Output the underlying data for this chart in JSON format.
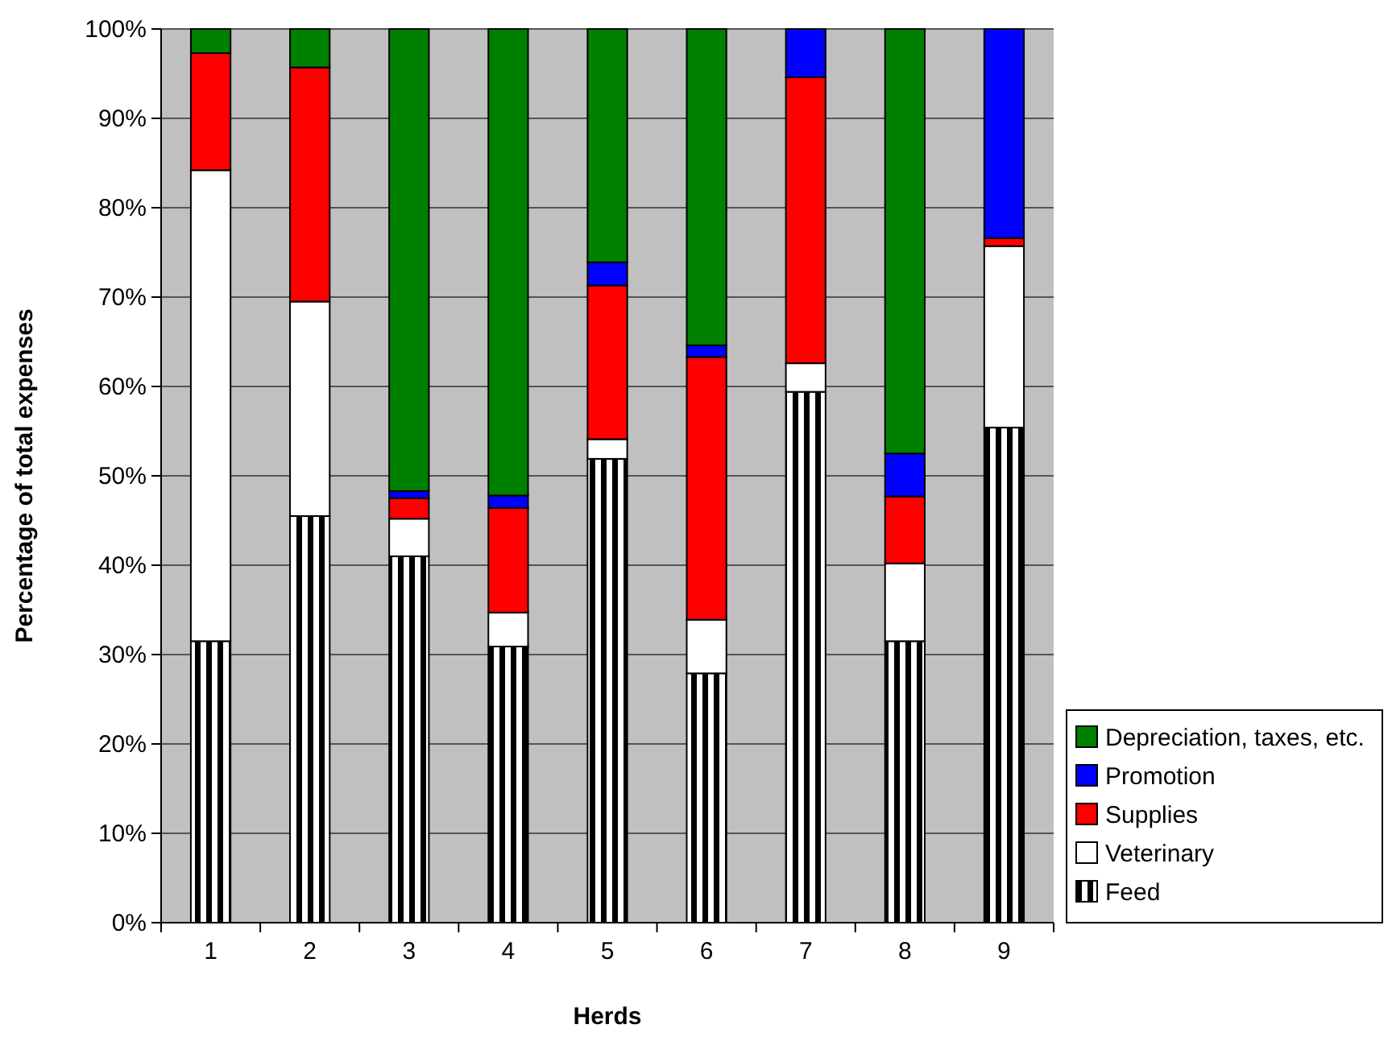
{
  "chart_data": {
    "type": "bar",
    "stacked": true,
    "xlabel": "Herds",
    "ylabel": "Percentage of total expenses",
    "categories": [
      "1",
      "2",
      "3",
      "4",
      "5",
      "6",
      "7",
      "8",
      "9"
    ],
    "series": [
      {
        "name": "Feed",
        "color": "#000000",
        "values": [
          31.5,
          45.5,
          41,
          30.9,
          51.9,
          27.9,
          59.4,
          31.5,
          55.4
        ]
      },
      {
        "name": "Veterinary",
        "color": "#ffffff",
        "values": [
          52.7,
          24,
          4.2,
          3.8,
          2.2,
          6,
          3.2,
          8.7,
          20.3
        ]
      },
      {
        "name": "Supplies",
        "color": "#ff0000",
        "values": [
          13.1,
          26.2,
          2.3,
          11.7,
          17.2,
          29.4,
          32,
          7.5,
          0.9
        ]
      },
      {
        "name": "Promotion",
        "color": "#0000ff",
        "values": [
          0,
          0,
          0.8,
          1.4,
          2.6,
          1.3,
          5.4,
          4.8,
          23.4
        ]
      },
      {
        "name": "Depreciation, taxes, etc.",
        "color": "#008000",
        "values": [
          2.7,
          4.3,
          51.7,
          52.2,
          26.1,
          35.4,
          0,
          47.5,
          0
        ]
      }
    ],
    "ylim": [
      0,
      100
    ],
    "yticks": [
      {
        "value": 0,
        "label": "0%"
      },
      {
        "value": 10,
        "label": "10%"
      },
      {
        "value": 20,
        "label": "20%"
      },
      {
        "value": 30,
        "label": "30%"
      },
      {
        "value": 40,
        "label": "40%"
      },
      {
        "value": 50,
        "label": "50%"
      },
      {
        "value": 60,
        "label": "60%"
      },
      {
        "value": 70,
        "label": "70%"
      },
      {
        "value": 80,
        "label": "80%"
      },
      {
        "value": 90,
        "label": "90%"
      },
      {
        "value": 100,
        "label": "100%"
      }
    ],
    "grid": "y",
    "legend": "bottom right"
  }
}
